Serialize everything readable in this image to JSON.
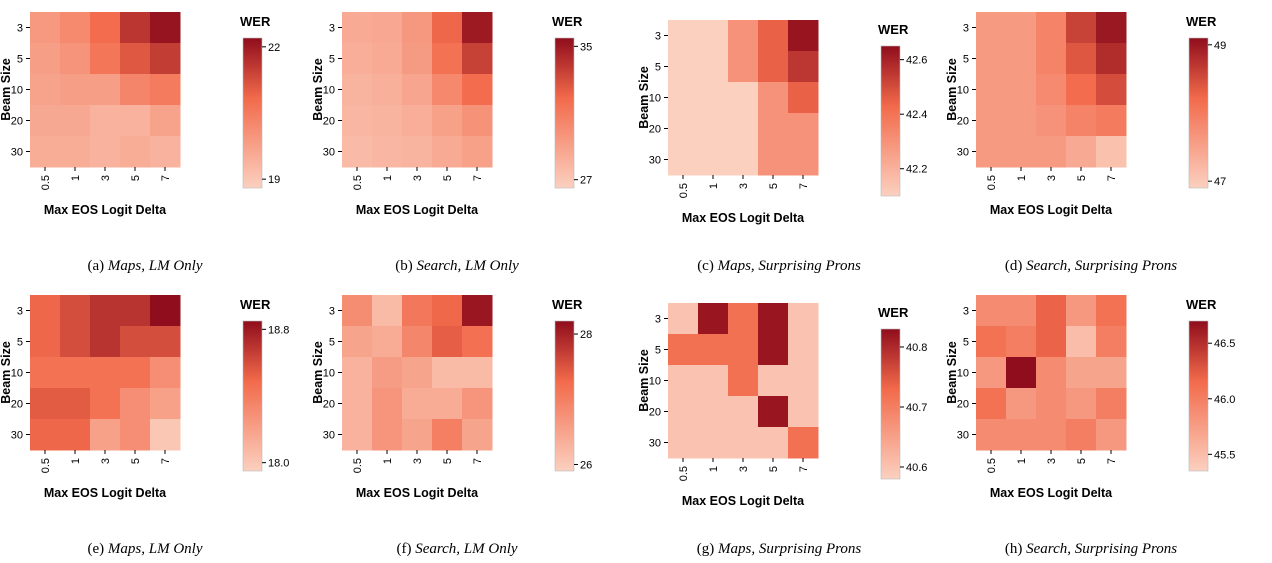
{
  "colors": {
    "low": "#fbd0bf",
    "mid": "#f26a4b",
    "high": "#8f0d1c"
  },
  "axes": {
    "xlabel": "Max EOS Logit Delta",
    "ylabel": "Beam Size",
    "x_ticks": [
      "0.5",
      "1",
      "3",
      "5",
      "7"
    ],
    "y_ticks": [
      "3",
      "5",
      "10",
      "20",
      "30"
    ]
  },
  "chart_data": [
    {
      "type": "heatmap",
      "caption_label": "(a)",
      "caption_title": "Maps, LM Only",
      "legend_title": "WER",
      "legend_ticks": [
        "22",
        "19"
      ],
      "colorscale": {
        "min": 18.8,
        "max": 22.2,
        "ticks": [
          22,
          19
        ]
      },
      "x": [
        "0.5",
        "1",
        "3",
        "5",
        "7"
      ],
      "y": [
        "3",
        "5",
        "10",
        "20",
        "30"
      ],
      "values": [
        [
          19.9,
          20.2,
          20.8,
          21.6,
          22.1
        ],
        [
          19.8,
          20.0,
          20.6,
          21.1,
          21.5
        ],
        [
          19.7,
          19.8,
          19.8,
          20.3,
          20.5
        ],
        [
          19.6,
          19.6,
          19.4,
          19.4,
          19.7
        ],
        [
          19.5,
          19.5,
          19.4,
          19.5,
          19.4
        ]
      ]
    },
    {
      "type": "heatmap",
      "caption_label": "(b)",
      "caption_title": "Search, LM Only",
      "legend_title": "WER",
      "legend_ticks": [
        "35",
        "27"
      ],
      "colorscale": {
        "min": 26.5,
        "max": 35.5,
        "ticks": [
          35,
          27
        ]
      },
      "x": [
        "0.5",
        "1",
        "3",
        "5",
        "7"
      ],
      "y": [
        "3",
        "5",
        "10",
        "20",
        "30"
      ],
      "values": [
        [
          28.5,
          28.6,
          29.5,
          32.0,
          35.0
        ],
        [
          28.3,
          28.5,
          29.3,
          31.5,
          33.5
        ],
        [
          28.0,
          28.2,
          28.8,
          30.3,
          31.8
        ],
        [
          27.8,
          28.0,
          28.3,
          29.0,
          29.8
        ],
        [
          27.6,
          27.8,
          28.0,
          28.5,
          29.0
        ]
      ]
    },
    {
      "type": "heatmap",
      "caption_label": "(c)",
      "caption_title": "Maps, Surprising Prons",
      "legend_title": "WER",
      "legend_ticks": [
        "42.6",
        "42.4",
        "42.2"
      ],
      "colorscale": {
        "min": 42.1,
        "max": 42.65,
        "ticks": [
          42.6,
          42.4,
          42.2
        ]
      },
      "x": [
        "0.5",
        "1",
        "3",
        "5",
        "7"
      ],
      "y": [
        "3",
        "5",
        "10",
        "20",
        "30"
      ],
      "values": [
        [
          42.1,
          42.1,
          42.3,
          42.45,
          42.63
        ],
        [
          42.1,
          42.1,
          42.3,
          42.45,
          42.55
        ],
        [
          42.1,
          42.1,
          42.1,
          42.3,
          42.45
        ],
        [
          42.1,
          42.1,
          42.1,
          42.3,
          42.3
        ],
        [
          42.1,
          42.1,
          42.1,
          42.3,
          42.3
        ]
      ]
    },
    {
      "type": "heatmap",
      "caption_label": "(d)",
      "caption_title": "Search, Surprising Prons",
      "legend_title": "WER",
      "legend_ticks": [
        "49",
        "47"
      ],
      "colorscale": {
        "min": 46.9,
        "max": 49.1,
        "ticks": [
          49,
          47
        ]
      },
      "x": [
        "0.5",
        "1",
        "3",
        "5",
        "7"
      ],
      "y": [
        "3",
        "5",
        "10",
        "20",
        "30"
      ],
      "values": [
        [
          47.6,
          47.6,
          47.9,
          48.6,
          49.0
        ],
        [
          47.6,
          47.6,
          47.9,
          48.4,
          48.8
        ],
        [
          47.6,
          47.6,
          47.8,
          48.2,
          48.5
        ],
        [
          47.6,
          47.6,
          47.7,
          47.9,
          48.0
        ],
        [
          47.6,
          47.6,
          47.6,
          47.4,
          47.1
        ]
      ]
    },
    {
      "type": "heatmap",
      "caption_label": "(e)",
      "caption_title": "Maps, LM Only",
      "legend_title": "WER",
      "legend_ticks": [
        "18.8",
        "18.0"
      ],
      "colorscale": {
        "min": 17.95,
        "max": 18.85,
        "ticks": [
          18.8,
          18.0
        ]
      },
      "x": [
        "0.5",
        "1",
        "3",
        "5",
        "7"
      ],
      "y": [
        "3",
        "5",
        "10",
        "20",
        "30"
      ],
      "values": [
        [
          18.5,
          18.6,
          18.7,
          18.7,
          18.85
        ],
        [
          18.5,
          18.6,
          18.7,
          18.6,
          18.6
        ],
        [
          18.45,
          18.45,
          18.45,
          18.45,
          18.3
        ],
        [
          18.55,
          18.55,
          18.45,
          18.3,
          18.2
        ],
        [
          18.5,
          18.5,
          18.2,
          18.3,
          18.0
        ]
      ]
    },
    {
      "type": "heatmap",
      "caption_label": "(f)",
      "caption_title": "Search, LM Only",
      "legend_title": "WER",
      "legend_ticks": [
        "28",
        "26"
      ],
      "colorscale": {
        "min": 25.9,
        "max": 28.2,
        "ticks": [
          28,
          26
        ]
      },
      "x": [
        "0.5",
        "1",
        "3",
        "5",
        "7"
      ],
      "y": [
        "3",
        "5",
        "10",
        "20",
        "30"
      ],
      "values": [
        [
          26.8,
          26.2,
          27.1,
          27.3,
          28.1
        ],
        [
          26.5,
          26.4,
          26.9,
          27.4,
          27.2
        ],
        [
          26.3,
          26.6,
          26.5,
          26.2,
          26.2
        ],
        [
          26.3,
          26.7,
          26.4,
          26.4,
          26.7
        ],
        [
          26.3,
          26.7,
          26.5,
          27.0,
          26.5
        ]
      ]
    },
    {
      "type": "heatmap",
      "caption_label": "(g)",
      "caption_title": "Maps, Surprising Prons",
      "legend_title": "WER",
      "legend_ticks": [
        "40.8",
        "40.7",
        "40.6"
      ],
      "colorscale": {
        "min": 40.58,
        "max": 40.83,
        "ticks": [
          40.8,
          40.7,
          40.6
        ]
      },
      "x": [
        "0.5",
        "1",
        "3",
        "5",
        "7"
      ],
      "y": [
        "3",
        "5",
        "10",
        "20",
        "30"
      ],
      "values": [
        [
          40.6,
          40.82,
          40.72,
          40.82,
          40.6
        ],
        [
          40.72,
          40.72,
          40.72,
          40.82,
          40.6
        ],
        [
          40.6,
          40.6,
          40.72,
          40.6,
          40.6
        ],
        [
          40.6,
          40.6,
          40.6,
          40.82,
          40.6
        ],
        [
          40.6,
          40.6,
          40.6,
          40.6,
          40.72
        ]
      ]
    },
    {
      "type": "heatmap",
      "caption_label": "(h)",
      "caption_title": "Search, Surprising Prons",
      "legend_title": "WER",
      "legend_ticks": [
        "46.5",
        "46.0",
        "45.5"
      ],
      "colorscale": {
        "min": 45.35,
        "max": 46.7,
        "ticks": [
          46.5,
          46.0,
          45.5
        ]
      },
      "x": [
        "0.5",
        "1",
        "3",
        "5",
        "7"
      ],
      "y": [
        "3",
        "5",
        "10",
        "20",
        "30"
      ],
      "values": [
        [
          45.9,
          45.9,
          46.2,
          45.8,
          46.1
        ],
        [
          46.1,
          46.0,
          46.2,
          45.5,
          46.0
        ],
        [
          45.8,
          46.7,
          45.9,
          45.7,
          45.7
        ],
        [
          46.1,
          45.8,
          45.9,
          45.8,
          46.0
        ],
        [
          45.9,
          45.9,
          45.9,
          46.0,
          45.8
        ]
      ]
    }
  ]
}
